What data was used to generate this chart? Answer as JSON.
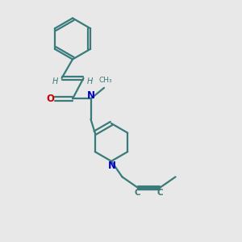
{
  "background_color": "#e8e8e8",
  "bond_color": "#3a7a7a",
  "nitrogen_color": "#0000cc",
  "oxygen_color": "#cc0000",
  "line_width": 1.6,
  "figsize": [
    3.0,
    3.0
  ],
  "dpi": 100,
  "xlim": [
    0,
    10
  ],
  "ylim": [
    0,
    10
  ]
}
